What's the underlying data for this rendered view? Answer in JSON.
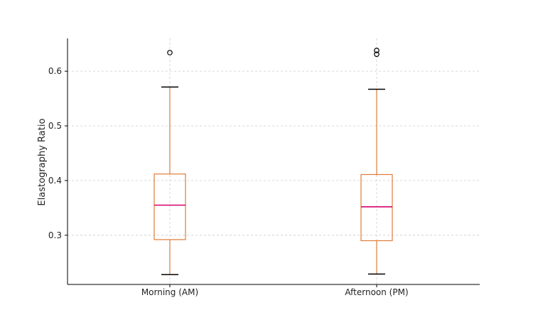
{
  "chart_data": {
    "type": "boxplot",
    "ylabel": "Elastography Ratio",
    "xlabel": "",
    "title": "",
    "ylim": [
      0.21,
      0.66
    ],
    "yticks": [
      0.3,
      0.4,
      0.5,
      0.6
    ],
    "ytick_labels": [
      "0.3",
      "0.4",
      "0.5",
      "0.6"
    ],
    "grid": true,
    "categories": [
      "Morning (AM)",
      "Afternoon (PM)"
    ],
    "boxes": [
      {
        "label": "Morning (AM)",
        "whisker_low": 0.228,
        "q1": 0.292,
        "median": 0.355,
        "q3": 0.412,
        "whisker_high": 0.571,
        "outliers": [
          0.634
        ]
      },
      {
        "label": "Afternoon (PM)",
        "whisker_low": 0.229,
        "q1": 0.29,
        "median": 0.352,
        "q3": 0.411,
        "whisker_high": 0.567,
        "outliers": [
          0.631,
          0.638
        ]
      }
    ],
    "colors": {
      "box": "#e07b39",
      "median": "#d6006f",
      "whisker_cap": "#000000",
      "outlier": "#000000",
      "grid": "#cccccc",
      "axis": "#000000"
    }
  }
}
